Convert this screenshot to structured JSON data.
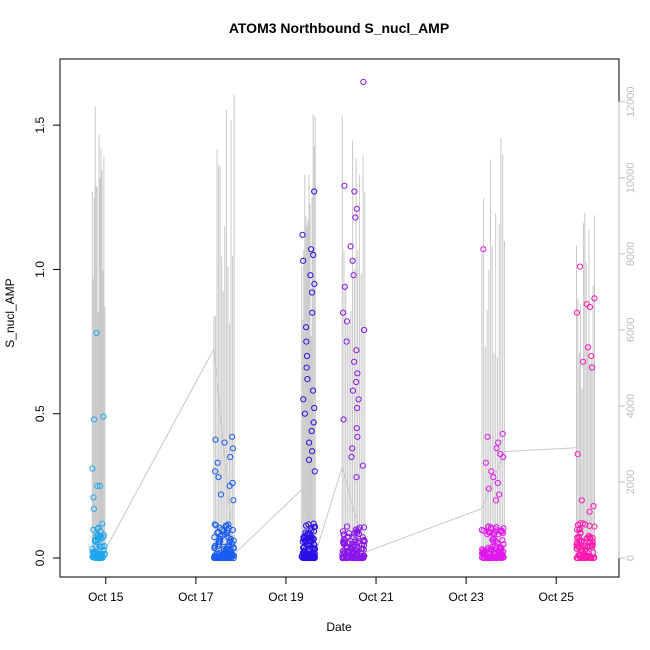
{
  "chart_data": {
    "type": "scatter",
    "title": "ATOM3 Northbound S_nucl_AMP",
    "xlabel": "Date",
    "ylabel": "S_nucl_AMP",
    "x_ticks": [
      "Oct 15",
      "Oct 17",
      "Oct 19",
      "Oct 21",
      "Oct 23",
      "Oct 25"
    ],
    "x_tick_days": [
      15,
      17,
      19,
      21,
      23,
      25
    ],
    "xlim_days": [
      14.45,
      25.95
    ],
    "ylim": [
      0,
      1.66
    ],
    "y_ticks": [
      0.0,
      0.5,
      1.0,
      1.5
    ],
    "y_tick_labels": [
      "0.0",
      "0.5",
      "1.0",
      "1.5"
    ],
    "y2_label": "",
    "y2lim": [
      0,
      12600
    ],
    "y2_ticks": [
      0,
      2000,
      4000,
      6000,
      8000,
      10000,
      12000
    ],
    "y2_tick_labels": [
      "0",
      "2000",
      "4000",
      "6000",
      "8000",
      "10000",
      "12000"
    ],
    "grid": false,
    "legend": "none",
    "point_color_gradient": [
      "#1ea7f0",
      "#1a5cf0",
      "#2a10e8",
      "#8a18e8",
      "#e018ec",
      "#ff1ab0"
    ],
    "line_color": "#c8c8c8",
    "bursts": [
      {
        "day_start": 14.7,
        "day_end": 14.98,
        "peak_y2": 11900,
        "n_points": 70,
        "color": "#1ea7f0",
        "outliers": [
          0.48,
          0.49,
          0.78,
          0.31,
          0.25,
          0.25,
          0.21,
          0.17
        ]
      },
      {
        "day_start": 17.4,
        "day_end": 17.85,
        "peak_y2": 12300,
        "n_points": 110,
        "color": "#1a5cf0",
        "outliers": [
          0.42,
          0.41,
          0.4,
          0.38,
          0.35,
          0.33,
          0.3,
          0.28,
          0.26,
          0.25,
          0.22,
          0.2
        ]
      },
      {
        "day_start": 19.35,
        "day_end": 19.65,
        "peak_y2": 12500,
        "n_points": 110,
        "color": "#2a10e8",
        "outliers": [
          1.27,
          1.12,
          1.07,
          1.05,
          1.03,
          0.98,
          0.95,
          0.92,
          0.85,
          0.8,
          0.75,
          0.7,
          0.66,
          0.62,
          0.58,
          0.55,
          0.52,
          0.5,
          0.47,
          0.44,
          0.4,
          0.37,
          0.34,
          0.3
        ]
      },
      {
        "day_start": 20.25,
        "day_end": 20.75,
        "peak_y2": 12400,
        "n_points": 130,
        "color": "#8a18e8",
        "outliers": [
          1.65,
          1.29,
          1.27,
          1.21,
          1.18,
          1.08,
          1.03,
          0.98,
          0.94,
          0.85,
          0.82,
          0.79,
          0.75,
          0.72,
          0.68,
          0.64,
          0.61,
          0.58,
          0.55,
          0.52,
          0.48,
          0.45,
          0.42,
          0.38,
          0.35,
          0.32,
          0.28
        ]
      },
      {
        "day_start": 23.35,
        "day_end": 23.85,
        "peak_y2": 11600,
        "n_points": 110,
        "color": "#e018ec",
        "outliers": [
          1.07,
          0.43,
          0.42,
          0.4,
          0.38,
          0.36,
          0.35,
          0.33,
          0.3,
          0.28,
          0.26,
          0.24,
          0.22,
          0.2
        ]
      },
      {
        "day_start": 25.45,
        "day_end": 25.85,
        "peak_y2": 9500,
        "n_points": 90,
        "color": "#ff1ab0",
        "outliers": [
          1.01,
          0.9,
          0.88,
          0.87,
          0.85,
          0.73,
          0.7,
          0.68,
          0.66,
          0.36,
          0.2,
          0.18,
          0.16,
          0.12
        ]
      }
    ],
    "connector_y2": [
      {
        "day": 14.98,
        "y2": 200
      },
      {
        "day": 17.4,
        "y2": 5500
      },
      {
        "day": 17.85,
        "y2": 100
      },
      {
        "day": 19.35,
        "y2": 1800
      },
      {
        "day": 19.65,
        "y2": 100
      },
      {
        "day": 20.25,
        "y2": 2400
      },
      {
        "day": 20.75,
        "y2": 150
      },
      {
        "day": 23.35,
        "y2": 1300
      },
      {
        "day": 23.85,
        "y2": 2800
      },
      {
        "day": 25.45,
        "y2": 2900
      }
    ]
  }
}
